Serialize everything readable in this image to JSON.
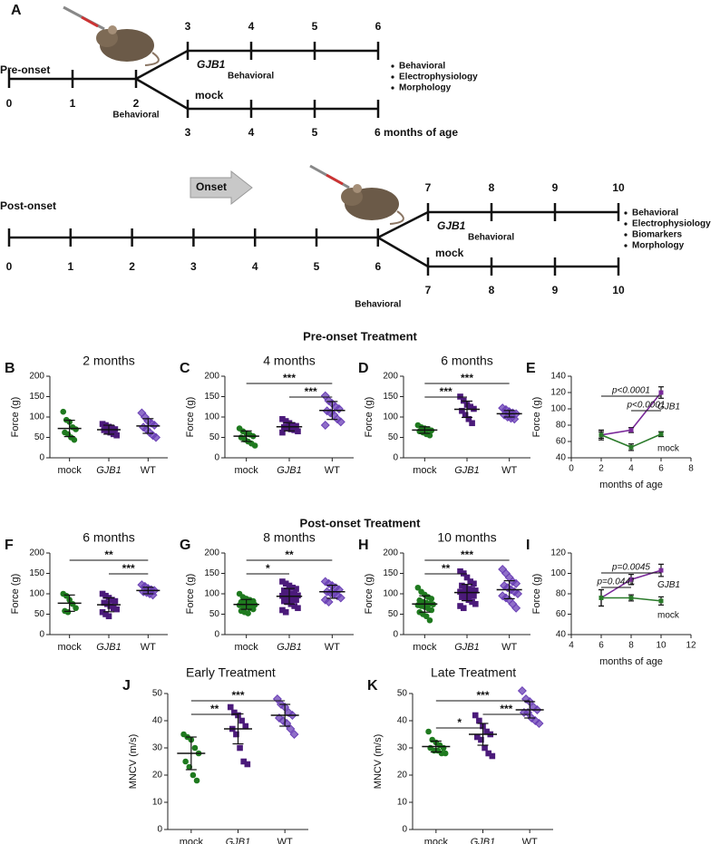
{
  "diagram": {
    "panel": "A",
    "pre_onset": {
      "label": "Pre-onset",
      "main_ticks": [
        "0",
        "1",
        "2"
      ],
      "main_note": "Behavioral",
      "upper_ticks": [
        "3",
        "4",
        "5",
        "6"
      ],
      "upper_label": "GJB1",
      "upper_note": "Behavioral",
      "lower_label": "mock",
      "lower_ticks": [
        "3",
        "4",
        "5",
        "6 months of age"
      ],
      "outcomes": [
        "Behavioral",
        "Electrophysiology",
        "Morphology"
      ]
    },
    "post_onset": {
      "label": "Post-onset",
      "onset": "Onset",
      "main_ticks": [
        "0",
        "1",
        "2",
        "3",
        "4",
        "5",
        "6"
      ],
      "main_note": "Behavioral",
      "upper_ticks": [
        "7",
        "8",
        "9",
        "10"
      ],
      "upper_label": "GJB1",
      "upper_note": "Behavioral",
      "lower_label": "mock",
      "lower_ticks": [
        "7",
        "8",
        "9",
        "10"
      ],
      "outcomes": [
        "Behavioral",
        "Electrophysiology",
        "Biomarkers",
        "Morphology"
      ]
    }
  },
  "sections": [
    "Pre-onset Treatment",
    "Post-onset Treatment"
  ],
  "chart_data": [
    {
      "type": "dotplot",
      "panel": "B",
      "title": "2 months",
      "y_label": "Force (g)",
      "ylim": [
        0,
        200
      ],
      "yticks": [
        0,
        50,
        100,
        150,
        200
      ],
      "categories": [
        "mock",
        "GJB1",
        "WT"
      ],
      "groups": [
        {
          "color": "#1f7a1f",
          "marker": "circle",
          "values": [
            113,
            93,
            88,
            75,
            70,
            62,
            58,
            50,
            44
          ],
          "mean": 72,
          "sd": 20
        },
        {
          "color": "#4b1a7a",
          "marker": "square",
          "label_style": "italic",
          "values": [
            83,
            80,
            76,
            73,
            70,
            68,
            65,
            62,
            58,
            55
          ],
          "mean": 69,
          "sd": 11
        },
        {
          "color": "#6a3fb5",
          "marker": "diamond",
          "values": [
            110,
            100,
            90,
            85,
            80,
            75,
            70,
            62,
            55,
            50
          ],
          "mean": 78,
          "sd": 18
        }
      ],
      "significance": []
    },
    {
      "type": "dotplot",
      "panel": "C",
      "title": "4 months",
      "y_label": "Force (g)",
      "ylim": [
        0,
        200
      ],
      "yticks": [
        0,
        50,
        100,
        150,
        200
      ],
      "categories": [
        "mock",
        "GJB1",
        "WT"
      ],
      "groups": [
        {
          "color": "#1f7a1f",
          "marker": "circle",
          "values": [
            72,
            65,
            60,
            57,
            53,
            50,
            45,
            40,
            35,
            30
          ],
          "mean": 53,
          "sd": 13
        },
        {
          "color": "#4b1a7a",
          "marker": "square",
          "label_style": "italic",
          "values": [
            95,
            90,
            85,
            80,
            78,
            75,
            73,
            70,
            68,
            65,
            62
          ],
          "mean": 76,
          "sd": 10
        },
        {
          "color": "#6a3fb5",
          "marker": "diamond",
          "values": [
            152,
            140,
            133,
            125,
            120,
            115,
            110,
            105,
            95,
            88,
            80
          ],
          "mean": 116,
          "sd": 22
        }
      ],
      "significance": [
        {
          "between": [
            0,
            2
          ],
          "label": "***"
        },
        {
          "between": [
            1,
            2
          ],
          "label": "***"
        }
      ]
    },
    {
      "type": "dotplot",
      "panel": "D",
      "title": "6 months",
      "y_label": "Force (g)",
      "ylim": [
        0,
        200
      ],
      "yticks": [
        0,
        50,
        100,
        150,
        200
      ],
      "categories": [
        "mock",
        "GJB1",
        "WT"
      ],
      "groups": [
        {
          "color": "#1f7a1f",
          "marker": "circle",
          "values": [
            80,
            75,
            72,
            70,
            67,
            65,
            62,
            58,
            55
          ],
          "mean": 68,
          "sd": 8
        },
        {
          "color": "#4b1a7a",
          "marker": "square",
          "label_style": "italic",
          "values": [
            150,
            140,
            130,
            125,
            120,
            115,
            105,
            95,
            85
          ],
          "mean": 119,
          "sd": 20
        },
        {
          "color": "#6a3fb5",
          "marker": "diamond",
          "values": [
            122,
            118,
            113,
            110,
            108,
            105,
            100,
            97,
            95
          ],
          "mean": 108,
          "sd": 8
        }
      ],
      "significance": [
        {
          "between": [
            0,
            2
          ],
          "label": "***"
        },
        {
          "between": [
            0,
            1
          ],
          "label": "***"
        }
      ]
    },
    {
      "type": "line",
      "panel": "E",
      "y_label": "Force (g)",
      "x_label": "months of age",
      "xlim": [
        0,
        8
      ],
      "xticks": [
        0,
        2,
        4,
        6,
        8
      ],
      "ylim": [
        40,
        140
      ],
      "yticks": [
        40,
        60,
        80,
        100,
        120,
        140
      ],
      "x": [
        2,
        4,
        6
      ],
      "series": [
        {
          "name": "GJB1",
          "color": "#7a2a9a",
          "label_style": "italic",
          "values": [
            68,
            74,
            120
          ],
          "errors": [
            4,
            3,
            7
          ]
        },
        {
          "name": "mock",
          "color": "#2a7a2a",
          "values": [
            68,
            53,
            69
          ],
          "errors": [
            6,
            4,
            3
          ]
        }
      ],
      "comparisons": [
        {
          "between": [
            2,
            6
          ],
          "label": "p<0.0001"
        },
        {
          "between": [
            4,
            6
          ],
          "label": "p<0.0001"
        }
      ]
    },
    {
      "type": "dotplot",
      "panel": "F",
      "title": "6 months",
      "y_label": "Force (g)",
      "ylim": [
        0,
        200
      ],
      "yticks": [
        0,
        50,
        100,
        150,
        200
      ],
      "categories": [
        "mock",
        "GJB1",
        "WT"
      ],
      "groups": [
        {
          "color": "#1f7a1f",
          "marker": "circle",
          "values": [
            100,
            95,
            85,
            75,
            65,
            58,
            55
          ],
          "mean": 77,
          "sd": 20
        },
        {
          "color": "#4b1a7a",
          "marker": "square",
          "label_style": "italic",
          "values": [
            100,
            95,
            90,
            85,
            82,
            78,
            75,
            70,
            65,
            62,
            55,
            50,
            45
          ],
          "mean": 73,
          "sd": 17
        },
        {
          "color": "#6a3fb5",
          "marker": "diamond",
          "values": [
            122,
            118,
            113,
            110,
            108,
            105,
            103,
            100,
            97
          ],
          "mean": 108,
          "sd": 8
        }
      ],
      "significance": [
        {
          "between": [
            0,
            2
          ],
          "label": "**"
        },
        {
          "between": [
            1,
            2
          ],
          "label": "***"
        }
      ]
    },
    {
      "type": "dotplot",
      "panel": "G",
      "title": "8 months",
      "y_label": "Force (g)",
      "ylim": [
        0,
        200
      ],
      "yticks": [
        0,
        50,
        100,
        150,
        200
      ],
      "categories": [
        "mock",
        "GJB1",
        "WT"
      ],
      "groups": [
        {
          "color": "#1f7a1f",
          "marker": "circle",
          "values": [
            100,
            92,
            88,
            85,
            82,
            80,
            78,
            76,
            75,
            73,
            72,
            70,
            68,
            65,
            62,
            58,
            55,
            52
          ],
          "mean": 74,
          "sd": 12
        },
        {
          "color": "#4b1a7a",
          "marker": "square",
          "label_style": "italic",
          "values": [
            130,
            125,
            120,
            115,
            112,
            108,
            105,
            100,
            98,
            96,
            95,
            92,
            90,
            88,
            85,
            82,
            80,
            75,
            70,
            65,
            60,
            55
          ],
          "mean": 94,
          "sd": 19
        },
        {
          "color": "#6a3fb5",
          "marker": "diamond",
          "values": [
            130,
            125,
            120,
            115,
            110,
            105,
            102,
            100,
            95,
            90,
            85,
            80
          ],
          "mean": 105,
          "sd": 16
        }
      ],
      "significance": [
        {
          "between": [
            0,
            2
          ],
          "label": "**"
        },
        {
          "between": [
            0,
            1
          ],
          "label": "*"
        }
      ]
    },
    {
      "type": "dotplot",
      "panel": "H",
      "title": "10 months",
      "y_label": "Force (g)",
      "ylim": [
        0,
        200
      ],
      "yticks": [
        0,
        50,
        100,
        150,
        200
      ],
      "categories": [
        "mock",
        "GJB1",
        "WT"
      ],
      "groups": [
        {
          "color": "#1f7a1f",
          "marker": "circle",
          "values": [
            115,
            105,
            98,
            92,
            88,
            84,
            80,
            78,
            76,
            74,
            72,
            70,
            68,
            64,
            60,
            55,
            50,
            45,
            35
          ],
          "mean": 75,
          "sd": 20
        },
        {
          "color": "#4b1a7a",
          "marker": "square",
          "label_style": "italic",
          "values": [
            155,
            150,
            140,
            130,
            125,
            120,
            115,
            112,
            110,
            108,
            105,
            102,
            100,
            98,
            95,
            92,
            90,
            85,
            80,
            75,
            70,
            65
          ],
          "mean": 103,
          "sd": 20
        },
        {
          "color": "#6a3fb5",
          "marker": "diamond",
          "values": [
            160,
            150,
            140,
            130,
            125,
            120,
            115,
            110,
            105,
            100,
            95,
            90,
            85,
            75,
            65
          ],
          "mean": 110,
          "sd": 22
        }
      ],
      "significance": [
        {
          "between": [
            0,
            2
          ],
          "label": "***"
        },
        {
          "between": [
            0,
            1
          ],
          "label": "**"
        }
      ]
    },
    {
      "type": "line",
      "panel": "I",
      "y_label": "Force (g)",
      "x_label": "months of age",
      "xlim": [
        4,
        12
      ],
      "xticks": [
        4,
        6,
        8,
        10,
        12
      ],
      "ylim": [
        40,
        120
      ],
      "yticks": [
        40,
        60,
        80,
        100,
        120
      ],
      "x": [
        6,
        8,
        10
      ],
      "series": [
        {
          "name": "GJB1",
          "color": "#7a2a9a",
          "label_style": "italic",
          "values": [
            76,
            94,
            103
          ],
          "errors": [
            8,
            5,
            6
          ]
        },
        {
          "name": "mock",
          "color": "#2a7a2a",
          "values": [
            76,
            76,
            73
          ],
          "errors": [
            8,
            3,
            4
          ]
        }
      ],
      "comparisons": [
        {
          "between": [
            6,
            10
          ],
          "label": "p=0.0045"
        },
        {
          "between": [
            6,
            8
          ],
          "label": "p=0.0441"
        }
      ]
    },
    {
      "type": "dotplot",
      "panel": "J",
      "title": "Early Treatment",
      "y_label": "MNCV (m/s)",
      "ylim": [
        0,
        50
      ],
      "yticks": [
        0,
        10,
        20,
        30,
        40,
        50
      ],
      "categories": [
        "mock",
        "GJB1",
        "WT"
      ],
      "groups": [
        {
          "color": "#1f7a1f",
          "marker": "circle",
          "values": [
            35,
            34,
            33,
            30,
            28,
            25,
            23,
            20,
            18
          ],
          "mean": 28,
          "sd": 6
        },
        {
          "color": "#4b1a7a",
          "marker": "square",
          "label_style": "italic",
          "values": [
            45,
            43,
            42,
            40,
            38,
            37,
            35,
            30,
            25,
            24
          ],
          "mean": 37,
          "sd": 5.5
        },
        {
          "color": "#6a3fb5",
          "marker": "diamond",
          "values": [
            48,
            46,
            45,
            43,
            42,
            41,
            40,
            39,
            37,
            35
          ],
          "mean": 42,
          "sd": 4
        }
      ],
      "significance": [
        {
          "between": [
            0,
            2
          ],
          "label": "***"
        },
        {
          "between": [
            0,
            1
          ],
          "label": "**"
        }
      ]
    },
    {
      "type": "dotplot",
      "panel": "K",
      "title": "Late Treatment",
      "y_label": "MNCV (m/s)",
      "ylim": [
        0,
        50
      ],
      "yticks": [
        0,
        10,
        20,
        30,
        40,
        50
      ],
      "categories": [
        "mock",
        "GJB1",
        "WT"
      ],
      "groups": [
        {
          "color": "#1f7a1f",
          "marker": "circle",
          "values": [
            36,
            33,
            32,
            31,
            30,
            30,
            29,
            29,
            28,
            28
          ],
          "mean": 30.5,
          "sd": 2
        },
        {
          "color": "#4b1a7a",
          "marker": "square",
          "label_style": "italic",
          "values": [
            42,
            40,
            38,
            36,
            35,
            34,
            33,
            30,
            28,
            27
          ],
          "mean": 35,
          "sd": 4
        },
        {
          "color": "#6a3fb5",
          "marker": "diamond",
          "values": [
            51,
            48,
            47,
            45,
            44,
            43,
            43,
            41,
            40,
            39
          ],
          "mean": 44,
          "sd": 3
        }
      ],
      "significance": [
        {
          "between": [
            0,
            2
          ],
          "label": "***"
        },
        {
          "between": [
            1,
            2
          ],
          "label": "***"
        },
        {
          "between": [
            0,
            1
          ],
          "label": "*"
        }
      ]
    }
  ]
}
